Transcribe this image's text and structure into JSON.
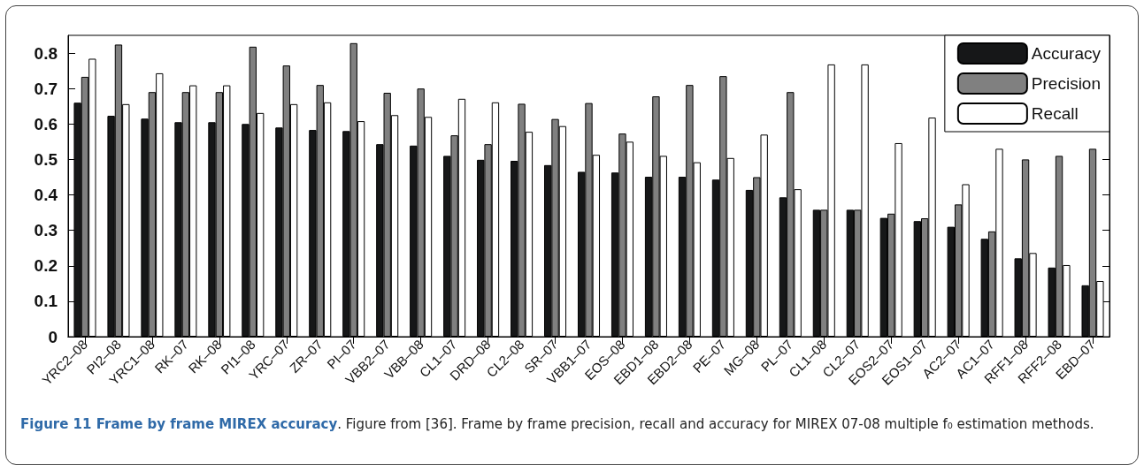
{
  "chart_data": {
    "type": "bar",
    "title": "Figure 11 Frame by frame MIREX accuracy",
    "annotations": [
      ". Figure from [36]. Frame by frame precision, recall and accuracy for MIREX 07-08 multiple f₀ estimation methods."
    ],
    "categories": [
      "YRC2–08",
      "PI2–08",
      "YRC1–08",
      "RK–07",
      "RK–08",
      "PI1–08",
      "YRC–07",
      "ZR–07",
      "PI–07",
      "VBB2–07",
      "VBB–08",
      "CL1–07",
      "DRD–08",
      "CL2–08",
      "SR–07",
      "VBB1–07",
      "EOS–08",
      "EBD1–08",
      "EBD2–08",
      "PE–07",
      "MG–08",
      "PL–07",
      "CL1–08",
      "CL2–07",
      "EOS2–07",
      "EOS1–07",
      "AC2–07",
      "AC1–07",
      "RFF1–08",
      "RFF2–08",
      "EBD–07"
    ],
    "series": [
      {
        "name": "Accuracy",
        "color": "#161718",
        "values": [
          0.66,
          0.623,
          0.615,
          0.605,
          0.605,
          0.6,
          0.59,
          0.583,
          0.58,
          0.543,
          0.539,
          0.51,
          0.499,
          0.496,
          0.484,
          0.465,
          0.463,
          0.451,
          0.451,
          0.443,
          0.414,
          0.393,
          0.358,
          0.358,
          0.335,
          0.326,
          0.31,
          0.276,
          0.221,
          0.195,
          0.145
        ]
      },
      {
        "name": "Precision",
        "color": "#808080",
        "values": [
          0.733,
          0.824,
          0.69,
          0.69,
          0.69,
          0.818,
          0.765,
          0.71,
          0.828,
          0.688,
          0.7,
          0.568,
          0.543,
          0.657,
          0.614,
          0.659,
          0.573,
          0.678,
          0.71,
          0.735,
          0.45,
          0.69,
          0.358,
          0.358,
          0.347,
          0.334,
          0.373,
          0.297,
          0.5,
          0.51,
          0.53
        ]
      },
      {
        "name": "Recall",
        "color": "#ffffff",
        "values": [
          0.784,
          0.656,
          0.743,
          0.709,
          0.709,
          0.631,
          0.656,
          0.661,
          0.608,
          0.625,
          0.62,
          0.671,
          0.661,
          0.578,
          0.594,
          0.513,
          0.55,
          0.51,
          0.492,
          0.504,
          0.57,
          0.416,
          0.768,
          0.768,
          0.546,
          0.618,
          0.43,
          0.53,
          0.236,
          0.202,
          0.157
        ]
      }
    ],
    "ylim": [
      0,
      0.85
    ],
    "yticks": [
      0,
      0.1,
      0.2,
      0.3,
      0.4,
      0.5,
      0.6,
      0.7,
      0.8
    ],
    "grid": false,
    "legend": "top right"
  }
}
